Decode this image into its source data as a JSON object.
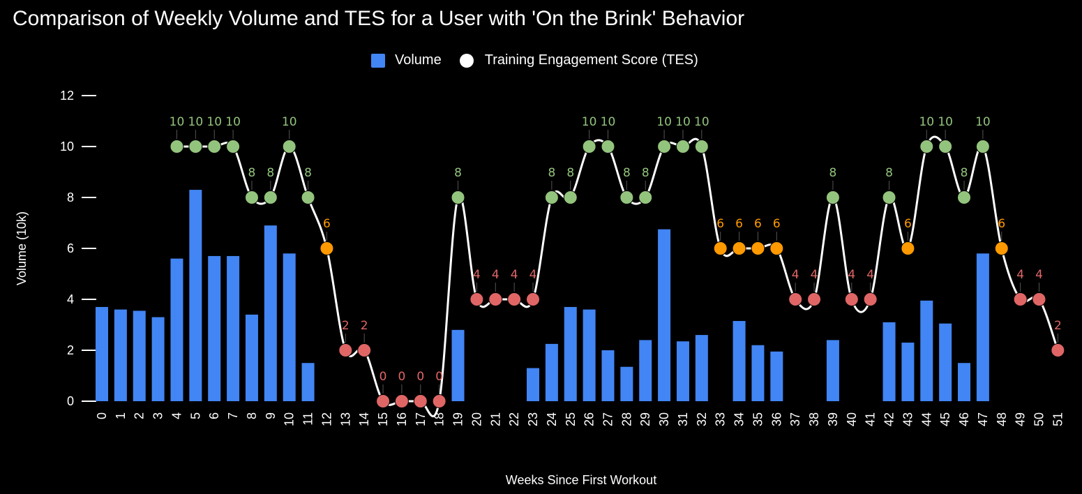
{
  "chart_data": {
    "type": "bar+line",
    "title": "Comparison of Weekly Volume and TES for a User with 'On the Brink' Behavior",
    "xlabel": "Weeks Since First Workout",
    "ylabel": "Volume (10k)",
    "ylim": [
      0,
      12
    ],
    "yticks": [
      0,
      2,
      4,
      6,
      8,
      10,
      12
    ],
    "legend_position": "top-center",
    "categories": [
      "0",
      "1",
      "2",
      "3",
      "4",
      "5",
      "6",
      "7",
      "8",
      "9",
      "10",
      "11",
      "12",
      "13",
      "14",
      "15",
      "16",
      "17",
      "18",
      "19",
      "20",
      "21",
      "22",
      "23",
      "24",
      "25",
      "26",
      "27",
      "28",
      "29",
      "30",
      "31",
      "32",
      "33",
      "34",
      "35",
      "36",
      "37",
      "38",
      "39",
      "40",
      "41",
      "42",
      "43",
      "44",
      "45",
      "46",
      "47",
      "48",
      "49",
      "50",
      "51"
    ],
    "series": [
      {
        "name": "Volume",
        "type": "bar",
        "color": "#4285f4",
        "values": [
          3.7,
          3.6,
          3.55,
          3.3,
          5.6,
          8.3,
          5.7,
          5.7,
          3.4,
          6.9,
          5.8,
          1.5,
          0,
          0,
          0,
          0,
          0,
          0,
          0,
          2.8,
          0,
          0,
          0,
          1.3,
          2.25,
          3.7,
          3.6,
          2.0,
          1.35,
          2.4,
          6.75,
          2.35,
          2.6,
          0,
          3.15,
          2.2,
          1.95,
          0,
          0,
          2.4,
          0,
          0,
          3.1,
          2.3,
          3.95,
          3.05,
          1.5,
          5.8,
          0,
          0,
          0,
          0
        ]
      },
      {
        "name": "Training Engagement Score (TES)",
        "type": "line",
        "color": "#ffffff",
        "values": [
          null,
          null,
          null,
          null,
          10,
          10,
          10,
          10,
          8,
          8,
          10,
          8,
          6,
          2,
          2,
          0,
          0,
          0,
          0,
          8,
          4,
          4,
          4,
          4,
          8,
          8,
          10,
          10,
          8,
          8,
          10,
          10,
          10,
          6,
          6,
          6,
          6,
          4,
          4,
          8,
          4,
          4,
          8,
          6,
          10,
          10,
          8,
          10,
          6,
          4,
          4,
          2
        ]
      }
    ],
    "tes_colors": {
      "high": "#93c47d",
      "mid": "#ff9900",
      "low": "#e06666"
    }
  }
}
